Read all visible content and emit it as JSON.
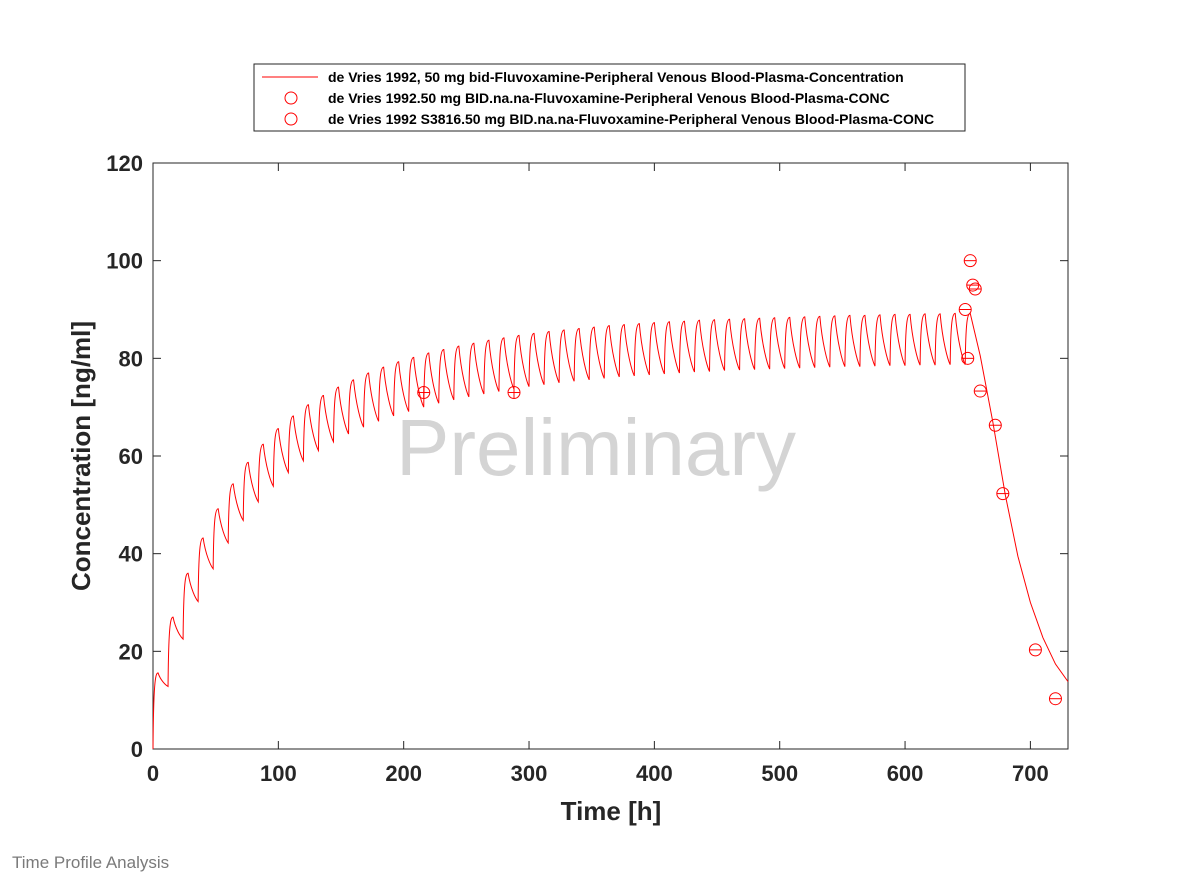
{
  "chart_data": {
    "type": "line",
    "xlabel": "Time [h]",
    "ylabel": "Concentration [ng/ml]",
    "xlim": [
      0,
      730
    ],
    "ylim": [
      0,
      120
    ],
    "xticks": [
      0,
      100,
      200,
      300,
      400,
      500,
      600,
      700
    ],
    "yticks": [
      0,
      20,
      40,
      60,
      80,
      100,
      120
    ],
    "grid": false,
    "legend_position": "top-center",
    "watermark": "Preliminary",
    "color": "#ff0000",
    "simulation": {
      "name": "de Vries 1992, 50 mg bid-Fluvoxamine-Peripheral Venous Blood-Plasma-Concentration",
      "dose_interval_h": 12,
      "last_dose_h": 648,
      "peaks": [
        {
          "x": 4,
          "y": 15.6
        },
        {
          "x": 16,
          "y": 27
        },
        {
          "x": 28,
          "y": 36
        },
        {
          "x": 40,
          "y": 43.2
        },
        {
          "x": 52,
          "y": 49.2
        },
        {
          "x": 64,
          "y": 54.3
        },
        {
          "x": 76,
          "y": 58.7
        },
        {
          "x": 88,
          "y": 62.4
        },
        {
          "x": 100,
          "y": 65.6
        },
        {
          "x": 112,
          "y": 68.2
        },
        {
          "x": 124,
          "y": 70.5
        },
        {
          "x": 136,
          "y": 72.4
        },
        {
          "x": 148,
          "y": 74.1
        },
        {
          "x": 160,
          "y": 75.6
        },
        {
          "x": 172,
          "y": 77
        },
        {
          "x": 184,
          "y": 78.2
        },
        {
          "x": 196,
          "y": 79.3
        },
        {
          "x": 208,
          "y": 80.2
        },
        {
          "x": 220,
          "y": 81.1
        },
        {
          "x": 232,
          "y": 81.8
        },
        {
          "x": 244,
          "y": 82.5
        },
        {
          "x": 256,
          "y": 83.1
        },
        {
          "x": 268,
          "y": 83.7
        },
        {
          "x": 280,
          "y": 84.2
        },
        {
          "x": 292,
          "y": 84.7
        },
        {
          "x": 304,
          "y": 85.1
        },
        {
          "x": 316,
          "y": 85.5
        },
        {
          "x": 328,
          "y": 85.8
        },
        {
          "x": 340,
          "y": 86.1
        },
        {
          "x": 352,
          "y": 86.4
        },
        {
          "x": 364,
          "y": 86.7
        },
        {
          "x": 376,
          "y": 86.9
        },
        {
          "x": 388,
          "y": 87.1
        },
        {
          "x": 400,
          "y": 87.3
        },
        {
          "x": 412,
          "y": 87.5
        },
        {
          "x": 424,
          "y": 87.6
        },
        {
          "x": 436,
          "y": 87.8
        },
        {
          "x": 448,
          "y": 87.9
        },
        {
          "x": 460,
          "y": 88
        },
        {
          "x": 472,
          "y": 88.1
        },
        {
          "x": 484,
          "y": 88.2
        },
        {
          "x": 496,
          "y": 88.3
        },
        {
          "x": 508,
          "y": 88.4
        },
        {
          "x": 520,
          "y": 88.5
        },
        {
          "x": 532,
          "y": 88.6
        },
        {
          "x": 544,
          "y": 88.7
        },
        {
          "x": 556,
          "y": 88.8
        },
        {
          "x": 568,
          "y": 88.8
        },
        {
          "x": 580,
          "y": 88.9
        },
        {
          "x": 592,
          "y": 89
        },
        {
          "x": 604,
          "y": 89
        },
        {
          "x": 616,
          "y": 89.1
        },
        {
          "x": 628,
          "y": 89.1
        },
        {
          "x": 640,
          "y": 89.2
        },
        {
          "x": 652,
          "y": 89.2
        }
      ],
      "troughs": [
        {
          "x": 12,
          "y": 12.8
        },
        {
          "x": 24,
          "y": 22.5
        },
        {
          "x": 36,
          "y": 30.2
        },
        {
          "x": 48,
          "y": 36.9
        },
        {
          "x": 60,
          "y": 42.2
        },
        {
          "x": 72,
          "y": 46.8
        },
        {
          "x": 84,
          "y": 50.6
        },
        {
          "x": 96,
          "y": 53.8
        },
        {
          "x": 108,
          "y": 56.6
        },
        {
          "x": 120,
          "y": 59
        },
        {
          "x": 132,
          "y": 61.1
        },
        {
          "x": 144,
          "y": 62.9
        },
        {
          "x": 156,
          "y": 64.5
        },
        {
          "x": 168,
          "y": 65.9
        },
        {
          "x": 180,
          "y": 67.1
        },
        {
          "x": 192,
          "y": 68.2
        },
        {
          "x": 204,
          "y": 69.1
        },
        {
          "x": 216,
          "y": 70
        },
        {
          "x": 228,
          "y": 70.8
        },
        {
          "x": 240,
          "y": 71.5
        },
        {
          "x": 252,
          "y": 72.1
        },
        {
          "x": 264,
          "y": 72.7
        },
        {
          "x": 276,
          "y": 73.2
        },
        {
          "x": 288,
          "y": 73.7
        },
        {
          "x": 300,
          "y": 74.2
        },
        {
          "x": 312,
          "y": 74.6
        },
        {
          "x": 324,
          "y": 75
        },
        {
          "x": 336,
          "y": 75.3
        },
        {
          "x": 348,
          "y": 75.6
        },
        {
          "x": 360,
          "y": 75.9
        },
        {
          "x": 372,
          "y": 76.2
        },
        {
          "x": 384,
          "y": 76.4
        },
        {
          "x": 396,
          "y": 76.6
        },
        {
          "x": 408,
          "y": 76.8
        },
        {
          "x": 420,
          "y": 77
        },
        {
          "x": 432,
          "y": 77.2
        },
        {
          "x": 444,
          "y": 77.3
        },
        {
          "x": 456,
          "y": 77.5
        },
        {
          "x": 468,
          "y": 77.6
        },
        {
          "x": 480,
          "y": 77.7
        },
        {
          "x": 492,
          "y": 77.8
        },
        {
          "x": 504,
          "y": 77.9
        },
        {
          "x": 516,
          "y": 78
        },
        {
          "x": 528,
          "y": 78.1
        },
        {
          "x": 540,
          "y": 78.2
        },
        {
          "x": 552,
          "y": 78.3
        },
        {
          "x": 564,
          "y": 78.3
        },
        {
          "x": 576,
          "y": 78.4
        },
        {
          "x": 588,
          "y": 78.5
        },
        {
          "x": 600,
          "y": 78.5
        },
        {
          "x": 612,
          "y": 78.6
        },
        {
          "x": 624,
          "y": 78.6
        },
        {
          "x": 636,
          "y": 78.7
        },
        {
          "x": 648,
          "y": 78.7
        }
      ],
      "elimination": [
        {
          "x": 652,
          "y": 89.2
        },
        {
          "x": 660,
          "y": 80.5
        },
        {
          "x": 670,
          "y": 67
        },
        {
          "x": 680,
          "y": 52
        },
        {
          "x": 690,
          "y": 39.5
        },
        {
          "x": 700,
          "y": 30
        },
        {
          "x": 710,
          "y": 22.8
        },
        {
          "x": 720,
          "y": 17.4
        },
        {
          "x": 730,
          "y": 13.8
        }
      ]
    },
    "observed": [
      {
        "name": "de Vries 1992.50 mg BID.na.na-Fluvoxamine-Peripheral Venous Blood-Plasma-CONC",
        "marker": "circle",
        "points": [
          {
            "x": 648,
            "y": 90
          },
          {
            "x": 650,
            "y": 80
          },
          {
            "x": 652,
            "y": 100
          },
          {
            "x": 654,
            "y": 95
          },
          {
            "x": 656,
            "y": 94.2
          },
          {
            "x": 660,
            "y": 73.3
          },
          {
            "x": 672,
            "y": 66.3
          },
          {
            "x": 678,
            "y": 52.3
          },
          {
            "x": 704,
            "y": 20.3
          },
          {
            "x": 720,
            "y": 10.3
          }
        ]
      },
      {
        "name": "de Vries 1992 S3816.50 mg BID.na.na-Fluvoxamine-Peripheral Venous Blood-Plasma-CONC",
        "marker": "circle",
        "points": [
          {
            "x": 216,
            "y": 73
          },
          {
            "x": 288,
            "y": 73
          }
        ]
      }
    ]
  },
  "footer": {
    "text": "Time Profile Analysis"
  }
}
